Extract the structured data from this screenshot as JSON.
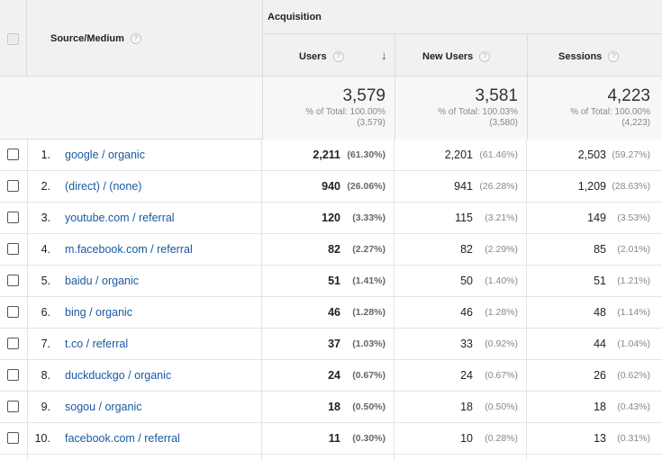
{
  "header": {
    "group_label": "Acquisition",
    "dimension_label": "Source/Medium",
    "columns": [
      {
        "label": "Users",
        "sorted": true
      },
      {
        "label": "New Users",
        "sorted": false
      },
      {
        "label": "Sessions",
        "sorted": false
      }
    ],
    "help_glyph": "?",
    "sort_glyph": "↓"
  },
  "totals": [
    {
      "value": "3,579",
      "pct_line": "% of Total: 100.00%",
      "abs_line": "(3,579)"
    },
    {
      "value": "3,581",
      "pct_line": "% of Total: 100.03%",
      "abs_line": "(3,580)"
    },
    {
      "value": "4,223",
      "pct_line": "% of Total: 100.00%",
      "abs_line": "(4,223)"
    }
  ],
  "rows": [
    {
      "index": "1.",
      "source": "google / organic",
      "users": "2,211",
      "users_pct": "(61.30%)",
      "new_users": "2,201",
      "new_users_pct": "(61.46%)",
      "sessions": "2,503",
      "sessions_pct": "(59.27%)"
    },
    {
      "index": "2.",
      "source": "(direct) / (none)",
      "users": "940",
      "users_pct": "(26.06%)",
      "new_users": "941",
      "new_users_pct": "(26.28%)",
      "sessions": "1,209",
      "sessions_pct": "(28.63%)"
    },
    {
      "index": "3.",
      "source": "youtube.com / referral",
      "users": "120",
      "users_pct": "(3.33%)",
      "new_users": "115",
      "new_users_pct": "(3.21%)",
      "sessions": "149",
      "sessions_pct": "(3.53%)"
    },
    {
      "index": "4.",
      "source": "m.facebook.com / referral",
      "users": "82",
      "users_pct": "(2.27%)",
      "new_users": "82",
      "new_users_pct": "(2.29%)",
      "sessions": "85",
      "sessions_pct": "(2.01%)"
    },
    {
      "index": "5.",
      "source": "baidu / organic",
      "users": "51",
      "users_pct": "(1.41%)",
      "new_users": "50",
      "new_users_pct": "(1.40%)",
      "sessions": "51",
      "sessions_pct": "(1.21%)"
    },
    {
      "index": "6.",
      "source": "bing / organic",
      "users": "46",
      "users_pct": "(1.28%)",
      "new_users": "46",
      "new_users_pct": "(1.28%)",
      "sessions": "48",
      "sessions_pct": "(1.14%)"
    },
    {
      "index": "7.",
      "source": "t.co / referral",
      "users": "37",
      "users_pct": "(1.03%)",
      "new_users": "33",
      "new_users_pct": "(0.92%)",
      "sessions": "44",
      "sessions_pct": "(1.04%)"
    },
    {
      "index": "8.",
      "source": "duckduckgo / organic",
      "users": "24",
      "users_pct": "(0.67%)",
      "new_users": "24",
      "new_users_pct": "(0.67%)",
      "sessions": "26",
      "sessions_pct": "(0.62%)"
    },
    {
      "index": "9.",
      "source": "sogou / organic",
      "users": "18",
      "users_pct": "(0.50%)",
      "new_users": "18",
      "new_users_pct": "(0.50%)",
      "sessions": "18",
      "sessions_pct": "(0.43%)"
    },
    {
      "index": "10.",
      "source": "facebook.com / referral",
      "users": "11",
      "users_pct": "(0.30%)",
      "new_users": "10",
      "new_users_pct": "(0.28%)",
      "sessions": "13",
      "sessions_pct": "(0.31%)"
    }
  ],
  "colors": {
    "link": "#1a5aa3",
    "header_bg": "#f1f1f1",
    "border": "#dcdcdc"
  }
}
